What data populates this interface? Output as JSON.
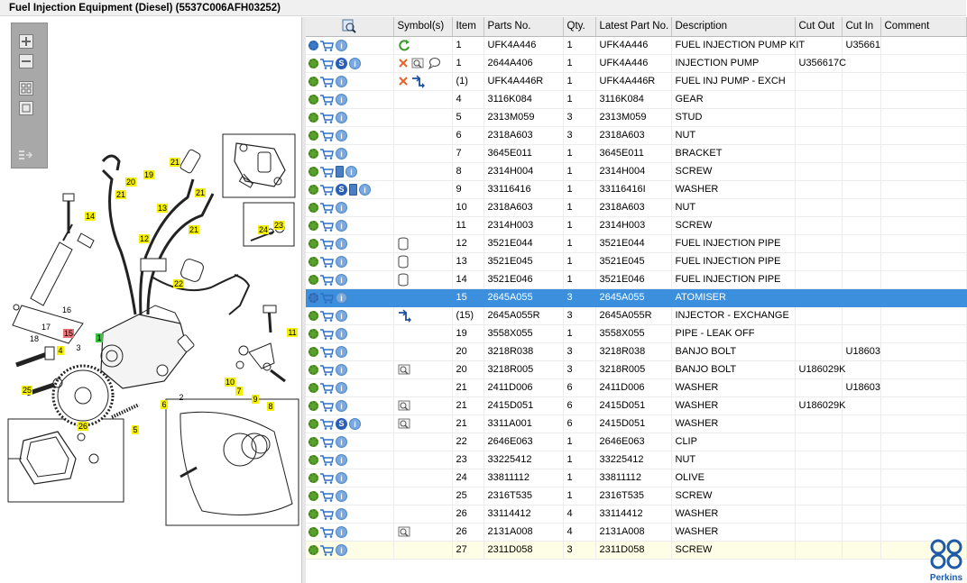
{
  "window": {
    "title": "Fuel Injection Equipment (Diesel) (5537C006AFH03252)"
  },
  "toolbar": {
    "tools": [
      {
        "name": "zoom-in-icon"
      },
      {
        "name": "zoom-out-icon"
      },
      {
        "name": "fit-page-icon"
      },
      {
        "name": "actual-size-icon"
      },
      {
        "name": "export-icon"
      }
    ]
  },
  "diagram": {
    "callouts": [
      "21",
      "20",
      "19",
      "21",
      "13",
      "21",
      "14",
      "21",
      "12",
      "22",
      "24",
      "23",
      "16",
      "17",
      "18",
      "15",
      "1",
      "11",
      "4",
      "3",
      "10",
      "7",
      "9",
      "8",
      "25",
      "6",
      "2",
      "26",
      "5"
    ]
  },
  "grid": {
    "columns": [
      "Symbol(s)",
      "Item",
      "Parts No.",
      "Qty.",
      "Latest Part No.",
      "Description",
      "Cut Out",
      "Cut In",
      "Comment"
    ],
    "rows": [
      {
        "icons": [
          "gear-multi",
          "cart",
          "info"
        ],
        "symbols": [
          "refresh"
        ],
        "item": "1",
        "part": "UFK4A446",
        "qty": "1",
        "latest": "UFK4A446",
        "desc": "FUEL INJECTION PUMP KIT",
        "cutout": "",
        "cutin": "U35661",
        "comment": ""
      },
      {
        "icons": [
          "gear",
          "cart",
          "s",
          "info"
        ],
        "symbols": [
          "cross",
          "note",
          "bubble"
        ],
        "item": "1",
        "part": "2644A406",
        "qty": "1",
        "latest": "UFK4A446",
        "desc": "INJECTION PUMP",
        "cutout": "U356617C",
        "cutin": "",
        "comment": ""
      },
      {
        "icons": [
          "gear",
          "cart",
          "info"
        ],
        "symbols": [
          "cross",
          "exchange"
        ],
        "item": "(1)",
        "part": "UFK4A446R",
        "qty": "1",
        "latest": "UFK4A446R",
        "desc": "FUEL INJ PUMP - EXCH",
        "cutout": "",
        "cutin": "",
        "comment": ""
      },
      {
        "icons": [
          "gear",
          "cart",
          "info"
        ],
        "symbols": [],
        "item": "4",
        "part": "3116K084",
        "qty": "1",
        "latest": "3116K084",
        "desc": "GEAR",
        "cutout": "",
        "cutin": "",
        "comment": ""
      },
      {
        "icons": [
          "gear",
          "cart",
          "info"
        ],
        "symbols": [],
        "item": "5",
        "part": "2313M059",
        "qty": "3",
        "latest": "2313M059",
        "desc": "STUD",
        "cutout": "",
        "cutin": "",
        "comment": ""
      },
      {
        "icons": [
          "gear",
          "cart",
          "info"
        ],
        "symbols": [],
        "item": "6",
        "part": "2318A603",
        "qty": "3",
        "latest": "2318A603",
        "desc": "NUT",
        "cutout": "",
        "cutin": "",
        "comment": ""
      },
      {
        "icons": [
          "gear",
          "cart",
          "info"
        ],
        "symbols": [],
        "item": "7",
        "part": "3645E011",
        "qty": "1",
        "latest": "3645E011",
        "desc": "BRACKET",
        "cutout": "",
        "cutin": "",
        "comment": ""
      },
      {
        "icons": [
          "gear",
          "cart",
          "book",
          "info"
        ],
        "symbols": [],
        "item": "8",
        "part": "2314H004",
        "qty": "1",
        "latest": "2314H004",
        "desc": "SCREW",
        "cutout": "",
        "cutin": "",
        "comment": ""
      },
      {
        "icons": [
          "gear",
          "cart",
          "s",
          "book",
          "info"
        ],
        "symbols": [],
        "item": "9",
        "part": "33116416",
        "qty": "1",
        "latest": "33116416I",
        "desc": "WASHER",
        "cutout": "",
        "cutin": "",
        "comment": ""
      },
      {
        "icons": [
          "gear",
          "cart",
          "info"
        ],
        "symbols": [],
        "item": "10",
        "part": "2318A603",
        "qty": "1",
        "latest": "2318A603",
        "desc": "NUT",
        "cutout": "",
        "cutin": "",
        "comment": ""
      },
      {
        "icons": [
          "gear",
          "cart",
          "info"
        ],
        "symbols": [],
        "item": "11",
        "part": "2314H003",
        "qty": "1",
        "latest": "2314H003",
        "desc": "SCREW",
        "cutout": "",
        "cutin": "",
        "comment": ""
      },
      {
        "icons": [
          "gear",
          "cart",
          "info"
        ],
        "symbols": [
          "cylinder"
        ],
        "item": "12",
        "part": "3521E044",
        "qty": "1",
        "latest": "3521E044",
        "desc": "FUEL INJECTION PIPE",
        "cutout": "",
        "cutin": "",
        "comment": ""
      },
      {
        "icons": [
          "gear",
          "cart",
          "info"
        ],
        "symbols": [
          "cylinder"
        ],
        "item": "13",
        "part": "3521E045",
        "qty": "1",
        "latest": "3521E045",
        "desc": "FUEL INJECTION PIPE",
        "cutout": "",
        "cutin": "",
        "comment": ""
      },
      {
        "icons": [
          "gear",
          "cart",
          "info"
        ],
        "symbols": [
          "cylinder"
        ],
        "item": "14",
        "part": "3521E046",
        "qty": "1",
        "latest": "3521E046",
        "desc": "FUEL INJECTION PIPE",
        "cutout": "",
        "cutin": "",
        "comment": ""
      },
      {
        "icons": [
          "gear-multi",
          "cart",
          "info"
        ],
        "symbols": [],
        "item": "15",
        "part": "2645A055",
        "qty": "3",
        "latest": "2645A055",
        "desc": "ATOMISER",
        "cutout": "",
        "cutin": "",
        "comment": "",
        "selected": true
      },
      {
        "icons": [
          "gear",
          "cart",
          "info"
        ],
        "symbols": [
          "exchange"
        ],
        "item": "(15)",
        "part": "2645A055R",
        "qty": "3",
        "latest": "2645A055R",
        "desc": "INJECTOR - EXCHANGE",
        "cutout": "",
        "cutin": "",
        "comment": ""
      },
      {
        "icons": [
          "gear",
          "cart",
          "info"
        ],
        "symbols": [],
        "item": "19",
        "part": "3558X055",
        "qty": "1",
        "latest": "3558X055",
        "desc": "PIPE - LEAK OFF",
        "cutout": "",
        "cutin": "",
        "comment": ""
      },
      {
        "icons": [
          "gear",
          "cart",
          "info"
        ],
        "symbols": [],
        "item": "20",
        "part": "3218R038",
        "qty": "3",
        "latest": "3218R038",
        "desc": "BANJO BOLT",
        "cutout": "",
        "cutin": "U18603",
        "comment": ""
      },
      {
        "icons": [
          "gear",
          "cart",
          "info"
        ],
        "symbols": [
          "note"
        ],
        "item": "20",
        "part": "3218R005",
        "qty": "3",
        "latest": "3218R005",
        "desc": "BANJO BOLT",
        "cutout": "U186029K",
        "cutin": "",
        "comment": ""
      },
      {
        "icons": [
          "gear",
          "cart",
          "info"
        ],
        "symbols": [],
        "item": "21",
        "part": "2411D006",
        "qty": "6",
        "latest": "2411D006",
        "desc": "WASHER",
        "cutout": "",
        "cutin": "U18603",
        "comment": ""
      },
      {
        "icons": [
          "gear",
          "cart",
          "info"
        ],
        "symbols": [
          "note"
        ],
        "item": "21",
        "part": "2415D051",
        "qty": "6",
        "latest": "2415D051",
        "desc": "WASHER",
        "cutout": "U186029K",
        "cutin": "",
        "comment": ""
      },
      {
        "icons": [
          "gear",
          "cart",
          "s",
          "info"
        ],
        "symbols": [
          "note"
        ],
        "item": "21",
        "part": "3311A001",
        "qty": "6",
        "latest": "2415D051",
        "desc": "WASHER",
        "cutout": "",
        "cutin": "",
        "comment": ""
      },
      {
        "icons": [
          "gear",
          "cart",
          "info"
        ],
        "symbols": [],
        "item": "22",
        "part": "2646E063",
        "qty": "1",
        "latest": "2646E063",
        "desc": "CLIP",
        "cutout": "",
        "cutin": "",
        "comment": ""
      },
      {
        "icons": [
          "gear",
          "cart",
          "info"
        ],
        "symbols": [],
        "item": "23",
        "part": "33225412",
        "qty": "1",
        "latest": "33225412",
        "desc": "NUT",
        "cutout": "",
        "cutin": "",
        "comment": ""
      },
      {
        "icons": [
          "gear",
          "cart",
          "info"
        ],
        "symbols": [],
        "item": "24",
        "part": "33811112",
        "qty": "1",
        "latest": "33811112",
        "desc": "OLIVE",
        "cutout": "",
        "cutin": "",
        "comment": ""
      },
      {
        "icons": [
          "gear",
          "cart",
          "info"
        ],
        "symbols": [],
        "item": "25",
        "part": "2316T535",
        "qty": "1",
        "latest": "2316T535",
        "desc": "SCREW",
        "cutout": "",
        "cutin": "",
        "comment": ""
      },
      {
        "icons": [
          "gear",
          "cart",
          "info"
        ],
        "symbols": [],
        "item": "26",
        "part": "33114412",
        "qty": "4",
        "latest": "33114412",
        "desc": "WASHER",
        "cutout": "",
        "cutin": "",
        "comment": ""
      },
      {
        "icons": [
          "gear",
          "cart",
          "info"
        ],
        "symbols": [
          "note"
        ],
        "item": "26",
        "part": "2131A008",
        "qty": "4",
        "latest": "2131A008",
        "desc": "WASHER",
        "cutout": "",
        "cutin": "",
        "comment": ""
      },
      {
        "icons": [
          "gear",
          "cart",
          "info"
        ],
        "symbols": [],
        "item": "27",
        "part": "2311D058",
        "qty": "3",
        "latest": "2311D058",
        "desc": "SCREW",
        "cutout": "",
        "cutin": "",
        "comment": "",
        "hover": true
      }
    ]
  },
  "brand": {
    "name": "Perkins",
    "color": "#1f5aa8"
  },
  "colors": {
    "selection": "#3c8fdc",
    "callout_yellow": "#f4f000",
    "callout_red": "#e8747a",
    "callout_green": "#36c43a"
  }
}
